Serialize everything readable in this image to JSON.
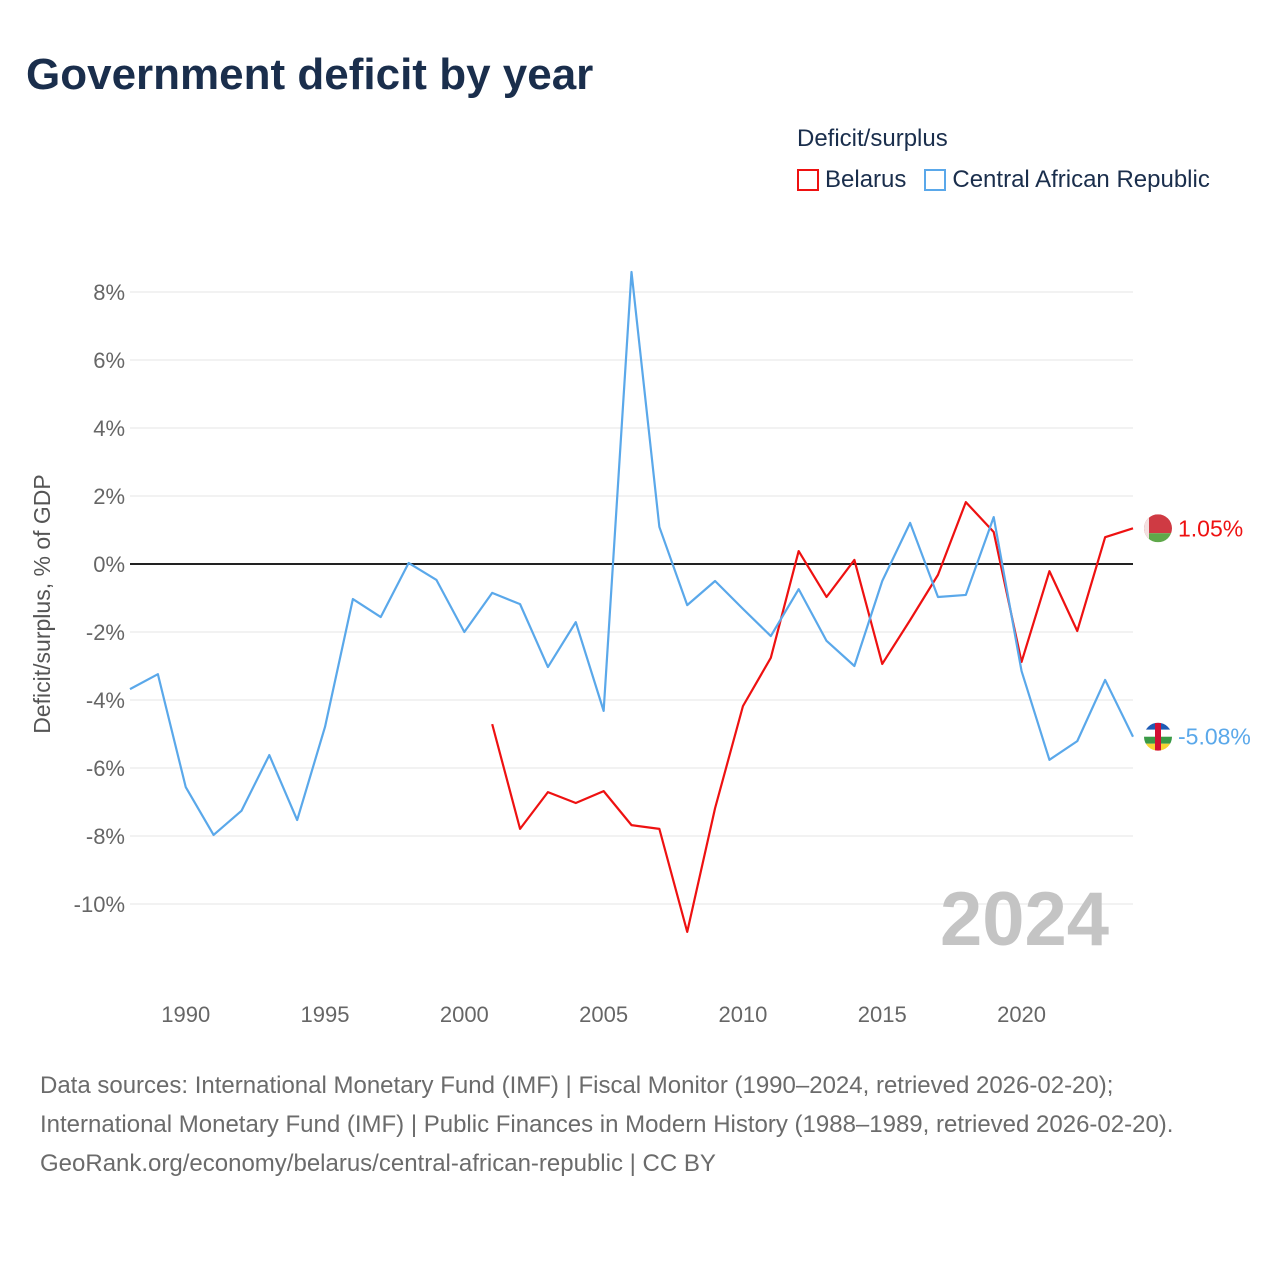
{
  "title": "Government deficit by year",
  "legend": {
    "title": "Deficit/surplus",
    "items": [
      {
        "label": "Belarus",
        "color": "#ee1111"
      },
      {
        "label": "Central African Republic",
        "color": "#5aa8ea"
      }
    ]
  },
  "chart_data": {
    "type": "line",
    "title": "Government deficit by year",
    "ylabel": "Deficit/surplus, % of GDP",
    "xlabel": "",
    "ylim": [
      -12,
      9
    ],
    "xlim": [
      1988,
      2024
    ],
    "yticks": [
      -10,
      -8,
      -6,
      -4,
      -2,
      0,
      2,
      4,
      6,
      8
    ],
    "ytick_labels": [
      "-10%",
      "-8%",
      "-6%",
      "-4%",
      "-2%",
      "0%",
      "2%",
      "4%",
      "6%",
      "8%"
    ],
    "xticks": [
      1990,
      1995,
      2000,
      2005,
      2010,
      2015,
      2020
    ],
    "xtick_labels": [
      "1990",
      "1995",
      "2000",
      "2005",
      "2010",
      "2015",
      "2020"
    ],
    "grid": true,
    "legend_placement": "top-right",
    "year_watermark": "2024",
    "series": [
      {
        "name": "Belarus",
        "color": "#ee1111",
        "end_label": "1.05%",
        "flag": "belarus-flag",
        "x": [
          2001,
          2002,
          2003,
          2004,
          2005,
          2006,
          2007,
          2008,
          2009,
          2010,
          2011,
          2012,
          2013,
          2014,
          2015,
          2016,
          2017,
          2018,
          2019,
          2020,
          2021,
          2022,
          2023,
          2024
        ],
        "values": [
          -4.71,
          -7.79,
          -6.71,
          -7.03,
          -6.68,
          -7.68,
          -7.79,
          -10.82,
          -7.18,
          -4.18,
          -2.76,
          0.38,
          -0.97,
          0.12,
          -2.94,
          -1.65,
          -0.32,
          1.82,
          0.94,
          -2.88,
          -0.21,
          -1.97,
          0.79,
          1.05
        ]
      },
      {
        "name": "Central African Republic",
        "color": "#5aa8ea",
        "end_label": "-5.08%",
        "flag": "car-flag",
        "x": [
          1988,
          1989,
          1990,
          1991,
          1992,
          1993,
          1994,
          1995,
          1996,
          1997,
          1998,
          1999,
          2000,
          2001,
          2002,
          2003,
          2004,
          2005,
          2006,
          2007,
          2008,
          2009,
          2010,
          2011,
          2012,
          2013,
          2014,
          2015,
          2016,
          2017,
          2018,
          2019,
          2020,
          2021,
          2022,
          2023,
          2024
        ],
        "values": [
          -3.68,
          -3.24,
          -6.56,
          -7.97,
          -7.26,
          -5.62,
          -7.53,
          -4.79,
          -1.03,
          -1.56,
          0.03,
          -0.47,
          -2.0,
          -0.85,
          -1.18,
          -3.03,
          -1.71,
          -4.32,
          8.59,
          1.09,
          -1.21,
          -0.5,
          -1.32,
          -2.12,
          -0.74,
          -2.26,
          -3.0,
          -0.5,
          1.21,
          -0.97,
          -0.91,
          1.38,
          -3.15,
          -5.76,
          -5.21,
          -3.41,
          -5.08
        ]
      }
    ]
  },
  "footer": {
    "sources": "Data sources: International Monetary Fund (IMF) | Fiscal Monitor (1990–2024, retrieved 2026-02-20); International Monetary Fund (IMF) | Public Finances in Modern History (1988–1989, retrieved 2026-02-20).",
    "credit": "GeoRank.org/economy/belarus/central-african-republic | CC BY"
  }
}
